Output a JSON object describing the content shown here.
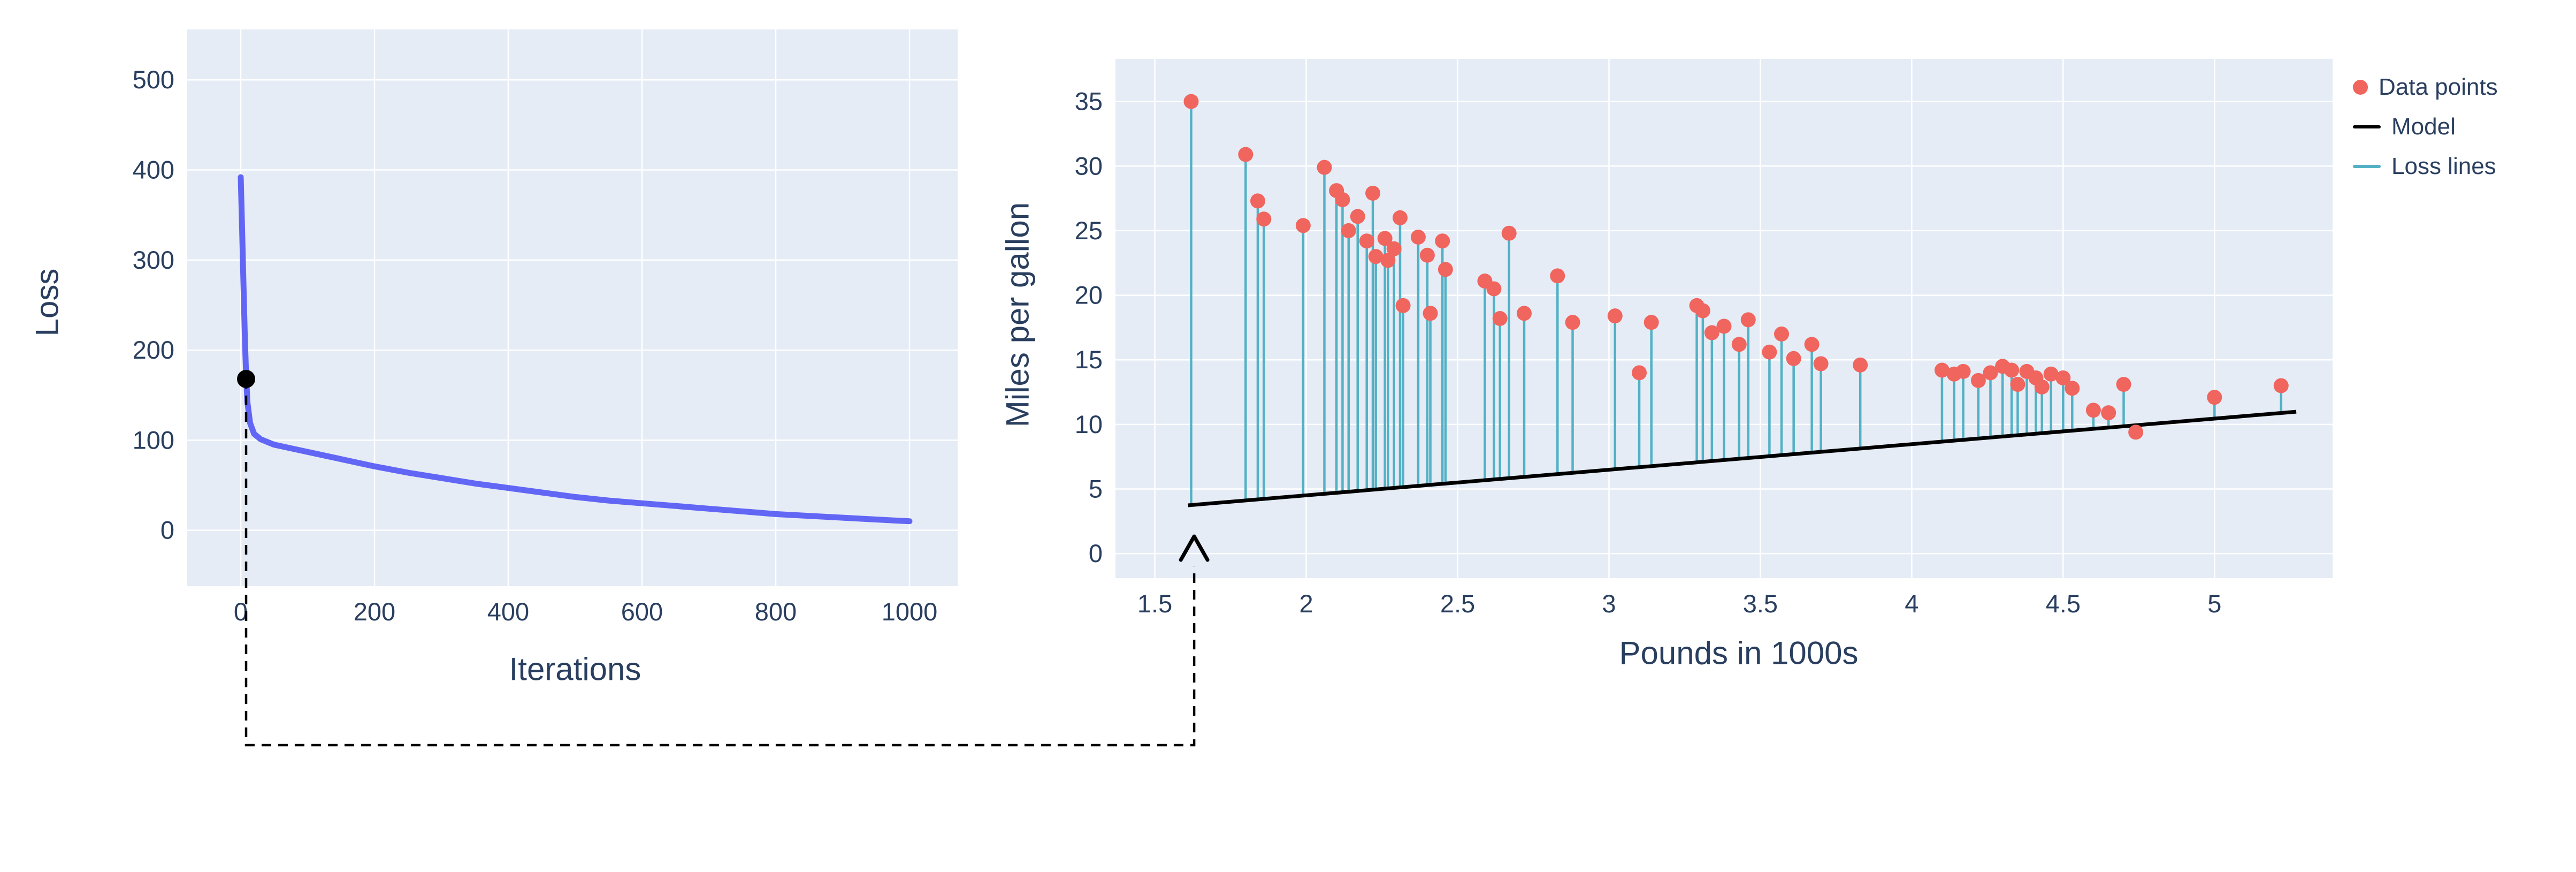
{
  "chart_data": [
    {
      "type": "line",
      "xlabel": "Iterations",
      "ylabel": "Loss",
      "xticks": [
        0,
        200,
        400,
        600,
        800,
        1000
      ],
      "yticks": [
        0,
        100,
        200,
        300,
        400,
        500
      ],
      "xlim": [
        -80,
        1072
      ],
      "ylim": [
        -62,
        556
      ],
      "bg": "#e5ecf6",
      "grid_color": "#ffffff",
      "text_color": "#2a3f5f",
      "line_color": "#6266f5",
      "marker_color": "#000000",
      "curve": {
        "x": [
          0,
          2,
          4,
          6,
          8,
          10,
          14,
          20,
          30,
          50,
          75,
          100,
          150,
          200,
          250,
          300,
          350,
          400,
          450,
          500,
          550,
          600,
          650,
          700,
          750,
          800,
          850,
          900,
          950,
          1000
        ],
        "y": [
          392,
          335,
          275,
          218,
          172,
          142,
          119,
          107,
          101,
          95,
          91,
          87,
          79,
          71,
          64,
          58,
          52,
          47,
          42,
          37,
          33,
          30,
          27,
          24,
          21,
          18,
          16,
          14,
          12,
          10
        ]
      },
      "marker": {
        "x": 8,
        "y": 168
      }
    },
    {
      "type": "scatter",
      "xlabel": "Pounds in 1000s",
      "ylabel": "Miles per gallon",
      "xticks": [
        1.5,
        2,
        2.5,
        3,
        3.5,
        4,
        4.5,
        5
      ],
      "yticks": [
        0,
        5,
        10,
        15,
        20,
        25,
        30,
        35
      ],
      "xlim": [
        1.37,
        5.39
      ],
      "ylim": [
        -1.9,
        38.3
      ],
      "bg": "#e5ecf6",
      "grid_color": "#ffffff",
      "text_color": "#2a3f5f",
      "point_color": "#f0655e",
      "model_color": "#000000",
      "loss_line_color": "#53b1c4",
      "points": [
        [
          1.62,
          35.0
        ],
        [
          1.8,
          30.9
        ],
        [
          1.84,
          27.3
        ],
        [
          1.86,
          25.9
        ],
        [
          1.99,
          25.4
        ],
        [
          2.06,
          29.9
        ],
        [
          2.1,
          28.1
        ],
        [
          2.12,
          27.4
        ],
        [
          2.14,
          25.0
        ],
        [
          2.17,
          26.1
        ],
        [
          2.2,
          24.2
        ],
        [
          2.22,
          27.9
        ],
        [
          2.23,
          23.0
        ],
        [
          2.26,
          24.4
        ],
        [
          2.27,
          22.7
        ],
        [
          2.29,
          23.6
        ],
        [
          2.31,
          26.0
        ],
        [
          2.32,
          19.2
        ],
        [
          2.37,
          24.5
        ],
        [
          2.4,
          23.1
        ],
        [
          2.41,
          18.6
        ],
        [
          2.45,
          24.2
        ],
        [
          2.46,
          22.0
        ],
        [
          2.59,
          21.1
        ],
        [
          2.62,
          20.5
        ],
        [
          2.64,
          18.2
        ],
        [
          2.67,
          24.8
        ],
        [
          2.72,
          18.6
        ],
        [
          2.83,
          21.5
        ],
        [
          2.88,
          17.9
        ],
        [
          3.02,
          18.4
        ],
        [
          3.1,
          14.0
        ],
        [
          3.14,
          17.9
        ],
        [
          3.29,
          19.2
        ],
        [
          3.31,
          18.8
        ],
        [
          3.34,
          17.1
        ],
        [
          3.38,
          17.6
        ],
        [
          3.43,
          16.2
        ],
        [
          3.46,
          18.1
        ],
        [
          3.53,
          15.6
        ],
        [
          3.57,
          17.0
        ],
        [
          3.61,
          15.1
        ],
        [
          3.67,
          16.2
        ],
        [
          3.7,
          14.7
        ],
        [
          3.83,
          14.6
        ],
        [
          4.1,
          14.2
        ],
        [
          4.14,
          13.9
        ],
        [
          4.17,
          14.1
        ],
        [
          4.22,
          13.4
        ],
        [
          4.26,
          14.0
        ],
        [
          4.3,
          14.5
        ],
        [
          4.33,
          14.2
        ],
        [
          4.35,
          13.1
        ],
        [
          4.38,
          14.1
        ],
        [
          4.41,
          13.6
        ],
        [
          4.43,
          12.9
        ],
        [
          4.46,
          13.9
        ],
        [
          4.5,
          13.6
        ],
        [
          4.53,
          12.8
        ],
        [
          4.6,
          11.1
        ],
        [
          4.65,
          10.9
        ],
        [
          4.7,
          13.1
        ],
        [
          4.74,
          9.4
        ],
        [
          5.0,
          12.1
        ],
        [
          5.22,
          13.0
        ]
      ],
      "model": {
        "slope": 1.98,
        "intercept": 0.55,
        "x": [
          1.61,
          5.27
        ]
      },
      "legend": [
        {
          "label": "Data points",
          "kind": "marker",
          "color": "#f0655e"
        },
        {
          "label": "Model",
          "kind": "line",
          "color": "#000000"
        },
        {
          "label": "Loss lines",
          "kind": "line",
          "color": "#53b1c4"
        }
      ]
    }
  ],
  "annotation": {
    "color": "#000000",
    "dash": "dashed",
    "target_x": 1.63
  }
}
